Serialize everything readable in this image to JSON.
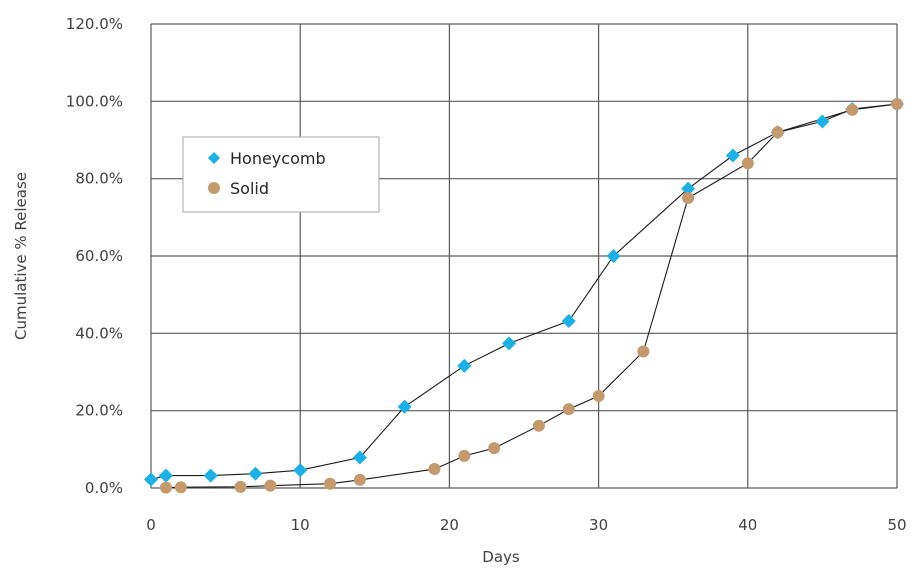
{
  "chart_data": {
    "type": "scatter",
    "title": "",
    "xlabel": "Days",
    "ylabel": "Cumulative % Release",
    "xlim": [
      0,
      50
    ],
    "ylim": [
      0,
      120
    ],
    "x_ticks": [
      0,
      10,
      20,
      30,
      40,
      50
    ],
    "y_ticks": [
      0,
      20,
      40,
      60,
      80,
      100,
      120
    ],
    "x_tick_labels": [
      "0",
      "10",
      "20",
      "30",
      "40",
      "50"
    ],
    "y_tick_labels": [
      "0.0%",
      "20.0%",
      "40.0%",
      "60.0%",
      "80.0%",
      "100.0%",
      "120.0%"
    ],
    "grid": true,
    "legend_position": "upper-left",
    "series": [
      {
        "name": "Honeycomb",
        "marker": "diamond",
        "color": "#1ab0e8",
        "x": [
          0,
          1,
          4,
          7,
          10,
          14,
          17,
          21,
          24,
          28,
          31,
          36,
          39,
          42,
          45,
          47,
          50
        ],
        "y": [
          2.2,
          3.2,
          3.2,
          3.7,
          4.6,
          7.9,
          21.0,
          31.6,
          37.4,
          43.2,
          60.0,
          77.4,
          86.0,
          92.0,
          94.8,
          98.0,
          99.3
        ]
      },
      {
        "name": "Solid",
        "marker": "circle",
        "color": "#c49a6c",
        "x": [
          1,
          2,
          6,
          8,
          12,
          14,
          19,
          21,
          23,
          26,
          28,
          30,
          33,
          36,
          40,
          42,
          47,
          50
        ],
        "y": [
          0.1,
          0.2,
          0.3,
          0.6,
          1.1,
          2.1,
          4.9,
          8.3,
          10.3,
          16.1,
          20.4,
          23.8,
          35.3,
          75.0,
          84.0,
          92.0,
          97.8,
          99.3
        ]
      }
    ]
  }
}
